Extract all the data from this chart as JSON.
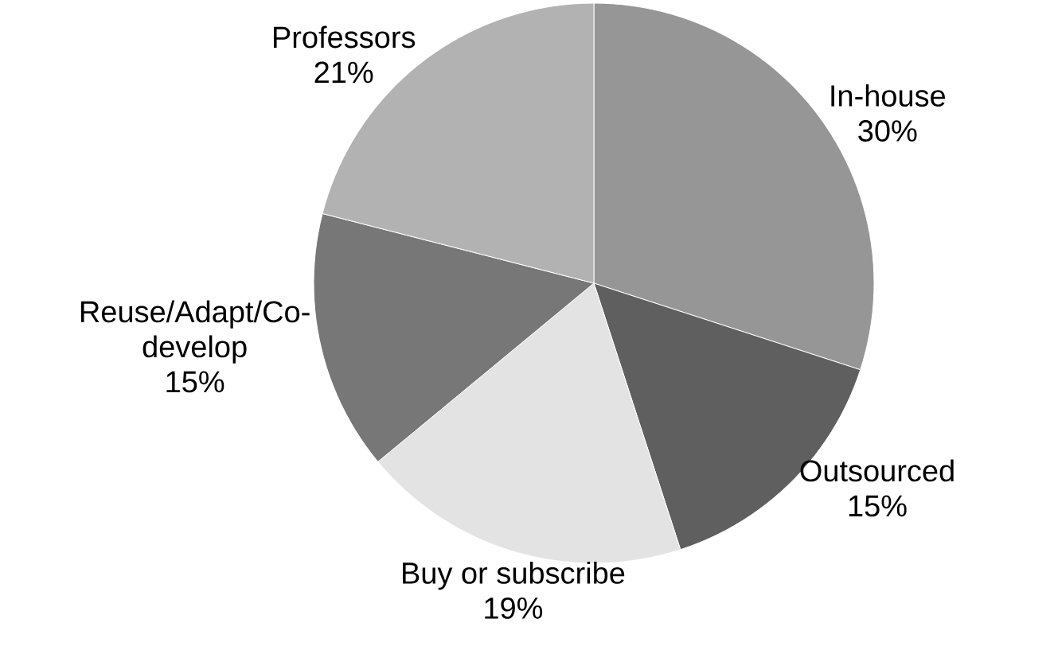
{
  "chart_data": {
    "type": "pie",
    "categories": [
      "In-house",
      "Outsourced",
      "Buy or subscribe",
      "Reuse/Adapt/Co-develop",
      "Professors"
    ],
    "values": [
      30,
      15,
      19,
      15,
      21
    ],
    "value_labels": [
      "30%",
      "15%",
      "19%",
      "15%",
      "21%"
    ],
    "colors": [
      "#969696",
      "#5f5f5f",
      "#e3e3e3",
      "#777777",
      "#b2b2b2"
    ]
  }
}
